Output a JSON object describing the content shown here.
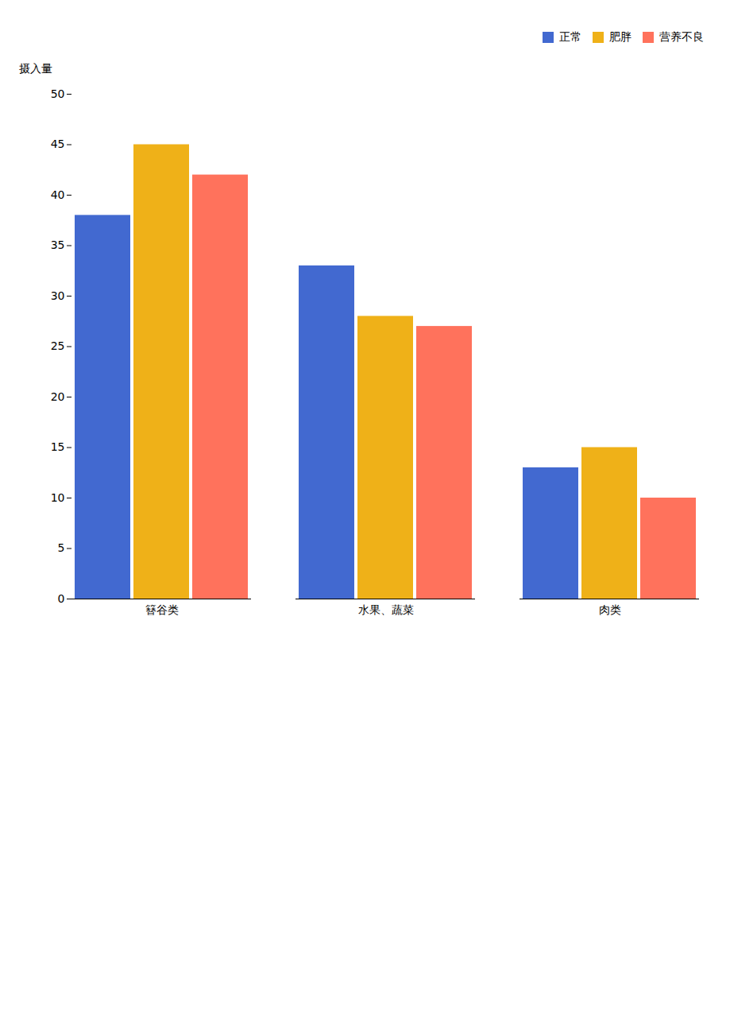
{
  "chart_data": {
    "type": "bar",
    "categories": [
      "簮谷类",
      "水果、蔬菜",
      "肉类"
    ],
    "series": [
      {
        "name": "正常",
        "values": [
          38,
          33,
          13
        ]
      },
      {
        "name": "肥胖",
        "values": [
          45,
          28,
          15
        ]
      },
      {
        "name": "营养不良",
        "values": [
          42,
          27,
          10
        ]
      }
    ],
    "y_label": "摄入量",
    "ylim": [
      0,
      50
    ],
    "yticks": [
      0,
      5,
      10,
      15,
      20,
      25,
      30,
      35,
      40,
      45,
      50
    ],
    "grid": false,
    "legend": "upper right"
  }
}
